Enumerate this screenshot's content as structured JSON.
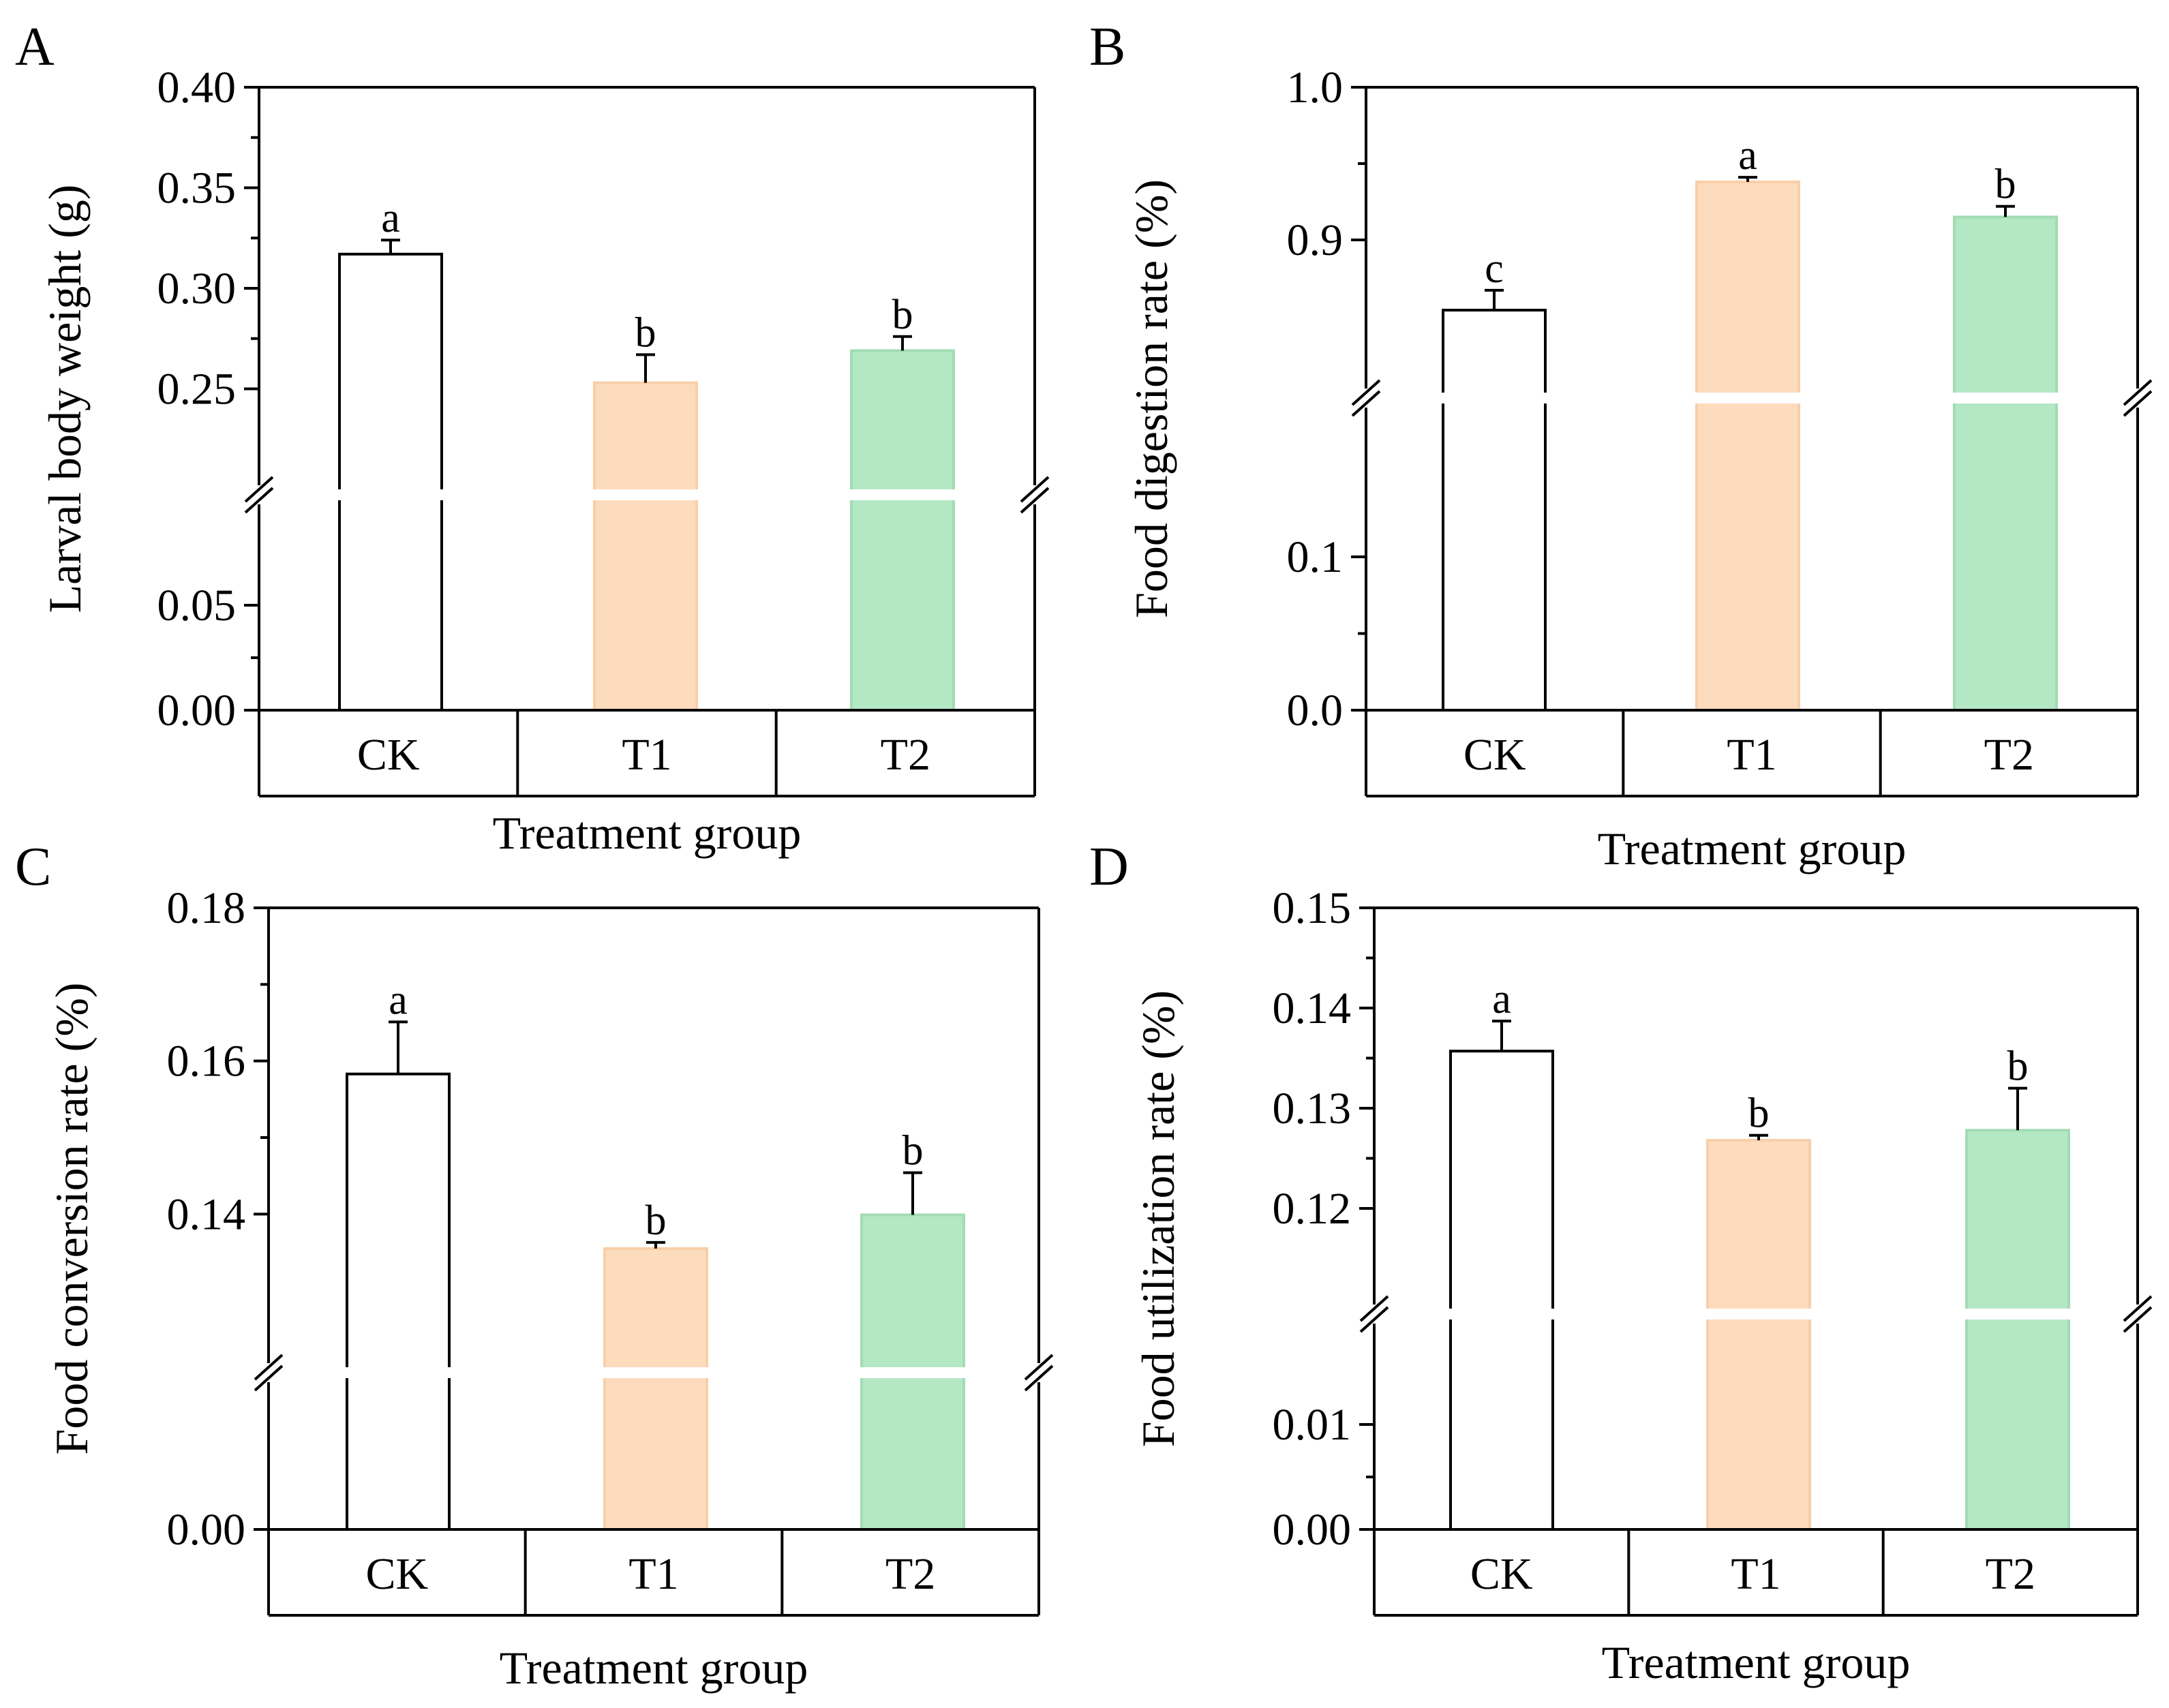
{
  "chart_data": [
    {
      "panel_label": "A",
      "type": "bar",
      "ylabel": "Larval body weight (g)",
      "xlabel": "Treatment group",
      "categories": [
        "CK",
        "T1",
        "T2"
      ],
      "values": [
        0.317,
        0.253,
        0.269
      ],
      "errors": [
        0.007,
        0.014,
        0.007
      ],
      "sig_letters": [
        "a",
        "b",
        "b"
      ],
      "colors": [
        "#ffffff",
        "#fcdcbd",
        "#b4e8c5"
      ],
      "edge_colors": [
        "#000000",
        "#f8cfa8",
        "#a2dbb4"
      ],
      "y_break": [
        0.1,
        0.2
      ],
      "ylim_lower": [
        0.0,
        0.1
      ],
      "ylim_upper": [
        0.2,
        0.4
      ],
      "yticks": [
        "0.00",
        "0.05",
        "0.25",
        "0.30",
        "0.35",
        "0.40"
      ]
    },
    {
      "panel_label": "B",
      "type": "bar",
      "ylabel": "Food digestion rate (%)",
      "xlabel": "Treatment group",
      "categories": [
        "CK",
        "T1",
        "T2"
      ],
      "values": [
        0.854,
        0.938,
        0.915
      ],
      "errors": [
        0.013,
        0.003,
        0.007
      ],
      "sig_letters": [
        "c",
        "a",
        "b"
      ],
      "colors": [
        "#ffffff",
        "#fcdcbd",
        "#b4e8c5"
      ],
      "edge_colors": [
        "#000000",
        "#f8cfa8",
        "#a2dbb4"
      ],
      "y_break": [
        0.2,
        0.8
      ],
      "ylim_lower": [
        0.0,
        0.2
      ],
      "ylim_upper": [
        0.8,
        1.0
      ],
      "yticks": [
        "0.0",
        "0.1",
        "0.9",
        "1.0"
      ]
    },
    {
      "panel_label": "C",
      "type": "bar",
      "ylabel": "Food conversion rate (%)",
      "xlabel": "Treatment group",
      "categories": [
        "CK",
        "T1",
        "T2"
      ],
      "values": [
        0.1583,
        0.1355,
        0.1399
      ],
      "errors": [
        0.0068,
        0.0008,
        0.0055
      ],
      "sig_letters": [
        "a",
        "b",
        "b"
      ],
      "colors": [
        "#ffffff",
        "#fcdcbd",
        "#b4e8c5"
      ],
      "edge_colors": [
        "#000000",
        "#f8cfa8",
        "#a2dbb4"
      ],
      "y_break": [
        0.02,
        0.12
      ],
      "ylim_lower": [
        0.0,
        0.02
      ],
      "ylim_upper": [
        0.12,
        0.18
      ],
      "yticks": [
        "0.00",
        "0.14",
        "0.16",
        "0.18"
      ]
    },
    {
      "panel_label": "D",
      "type": "bar",
      "ylabel": "Food utilization rate (%)",
      "xlabel": "Treatment group",
      "categories": [
        "CK",
        "T1",
        "T2"
      ],
      "values": [
        0.1357,
        0.1268,
        0.1278
      ],
      "errors": [
        0.003,
        0.0005,
        0.0042
      ],
      "sig_letters": [
        "a",
        "b",
        "b"
      ],
      "colors": [
        "#ffffff",
        "#fcdcbd",
        "#b4e8c5"
      ],
      "edge_colors": [
        "#000000",
        "#f8cfa8",
        "#a2dbb4"
      ],
      "y_break": [
        0.02,
        0.11
      ],
      "ylim_lower": [
        0.0,
        0.02
      ],
      "ylim_upper": [
        0.11,
        0.15
      ],
      "yticks": [
        "0.00",
        "0.01",
        "0.12",
        "0.13",
        "0.14",
        "0.15"
      ]
    }
  ]
}
